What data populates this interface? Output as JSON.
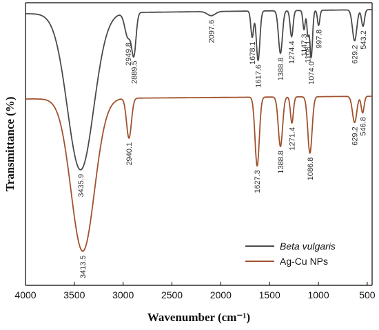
{
  "chart_data": {
    "type": "line",
    "xlabel": "Wavenumber (cm⁻¹)",
    "ylabel": "Transmittance (%)",
    "xlim": [
      4000,
      450
    ],
    "xticks": [
      "4000",
      "3500",
      "3000",
      "2500",
      "2000",
      "1500",
      "1000",
      "500"
    ],
    "yticks": [],
    "grid": false,
    "legend_position": "bottom-right",
    "series": [
      {
        "name": "Beta vulgaris",
        "name_italic": true,
        "color": "#4a4a4a",
        "peaks": [
          {
            "x": 3435.9,
            "label": "3435.9"
          },
          {
            "x": 2949.8,
            "label": "2949.8"
          },
          {
            "x": 2889.5,
            "label": "2889.5"
          },
          {
            "x": 2097.6,
            "label": "2097.6"
          },
          {
            "x": 1678.1,
            "label": "1678.1"
          },
          {
            "x": 1617.6,
            "label": "1617.6"
          },
          {
            "x": 1388.8,
            "label": "1388.8"
          },
          {
            "x": 1274.4,
            "label": "1274.4"
          },
          {
            "x": 1147.3,
            "label": "1147.3"
          },
          {
            "x": 1108.1,
            "label": "1108.1"
          },
          {
            "x": 1074.0,
            "label": "1074.0"
          },
          {
            "x": 997.8,
            "label": "997.8"
          },
          {
            "x": 629.2,
            "label": "629.2"
          },
          {
            "x": 543.2,
            "label": "543.2"
          }
        ]
      },
      {
        "name": "Ag-Cu NPs",
        "name_italic": false,
        "color": "#a0522d",
        "peaks": [
          {
            "x": 3413.5,
            "label": "3413.5"
          },
          {
            "x": 2940.1,
            "label": "2940.1"
          },
          {
            "x": 1627.3,
            "label": "1627.3"
          },
          {
            "x": 1388.8,
            "label": "1388.8"
          },
          {
            "x": 1271.4,
            "label": "1271.4"
          },
          {
            "x": 1086.8,
            "label": "1086.8"
          },
          {
            "x": 629.2,
            "label": "629.2"
          },
          {
            "x": 546.8,
            "label": "546.8"
          }
        ]
      }
    ]
  }
}
